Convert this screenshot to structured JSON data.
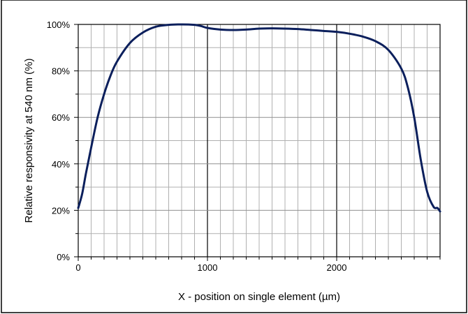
{
  "chart_data": {
    "type": "line",
    "title": "",
    "xlabel": "X - position on single element (µm)",
    "ylabel": "Relative responsivity at 540 nm (%)",
    "xlim": [
      0,
      2800
    ],
    "ylim": [
      0,
      100
    ],
    "x_ticks": [
      0,
      1000,
      2000
    ],
    "x_tick_labels": [
      "0",
      "1000",
      "2000"
    ],
    "y_ticks": [
      0,
      20,
      40,
      60,
      80,
      100
    ],
    "y_tick_labels": [
      "0%",
      "20%",
      "40%",
      "60%",
      "80%",
      "100%"
    ],
    "x_minor_step": 100,
    "y_minor_step": 10,
    "grid": true,
    "legend": "none",
    "series": [
      {
        "color": "#0b1f5c",
        "x": [
          0,
          30,
          60,
          100,
          150,
          200,
          250,
          300,
          400,
          500,
          600,
          700,
          800,
          900,
          950,
          1000,
          1100,
          1200,
          1300,
          1400,
          1500,
          1600,
          1700,
          1800,
          1900,
          2000,
          2100,
          2200,
          2300,
          2400,
          2500,
          2550,
          2600,
          2650,
          2700,
          2750,
          2780,
          2800
        ],
        "y": [
          21,
          27,
          36,
          47,
          60,
          70,
          78,
          84,
          92,
          96.5,
          99,
          99.8,
          100,
          99.8,
          99.3,
          98.5,
          97.8,
          97.6,
          97.8,
          98.2,
          98.3,
          98.2,
          98,
          97.6,
          97.2,
          96.8,
          96,
          94.8,
          92.8,
          89,
          81,
          73,
          60,
          42,
          28,
          21.5,
          21,
          19.5
        ]
      }
    ]
  }
}
